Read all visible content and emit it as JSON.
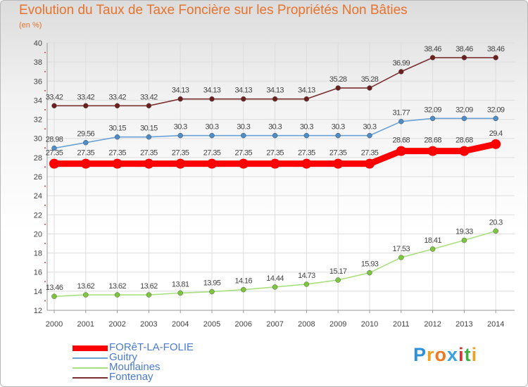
{
  "chart_data": {
    "type": "line",
    "title": "Evolution du Taux de Taxe Foncière sur les Propriétés Non Bâties",
    "subtitle": "(en %)",
    "x": [
      "2000",
      "2001",
      "2002",
      "2003",
      "2004",
      "2005",
      "2006",
      "2007",
      "2008",
      "2009",
      "2010",
      "2011",
      "2012",
      "2013",
      "2014"
    ],
    "ylim": [
      12,
      40
    ],
    "yticks": [
      12,
      14,
      16,
      18,
      20,
      22,
      24,
      26,
      28,
      30,
      32,
      34,
      36,
      38,
      40
    ],
    "grid": true,
    "legend_position": "bottom-left",
    "series": [
      {
        "name": "Fontenay",
        "color": "#7a2f2f",
        "marker_color": "#6b1f1f",
        "emphasis": false,
        "values": [
          33.42,
          33.42,
          33.42,
          33.42,
          34.13,
          34.13,
          34.13,
          34.13,
          34.13,
          35.28,
          35.28,
          36.99,
          38.46,
          38.46,
          38.46
        ],
        "labels": [
          "33.42",
          "33.42",
          "33.42",
          "33.42",
          "34.13",
          "34.13",
          "34.13",
          "34.13",
          "34.13",
          "35.28",
          "35.28",
          "36.99",
          "38.46",
          "38.46",
          "38.46"
        ]
      },
      {
        "name": "Guitry",
        "color": "#6aa2d6",
        "marker_color": "#4d8cc7",
        "emphasis": false,
        "values": [
          28.98,
          29.56,
          30.15,
          30.15,
          30.3,
          30.3,
          30.3,
          30.3,
          30.3,
          30.3,
          30.3,
          31.77,
          32.09,
          32.09,
          32.09
        ],
        "labels": [
          "28.98",
          "29.56",
          "30.15",
          "30.15",
          "30.3",
          "30.3",
          "30.3",
          "30.3",
          "30.3",
          "30.3",
          "30.3",
          "31.77",
          "32.09",
          "32.09",
          "32.09"
        ]
      },
      {
        "name": "Mouflaines",
        "color": "#a9e07f",
        "marker_color": "#7cc63c",
        "emphasis": false,
        "values": [
          13.46,
          13.62,
          13.62,
          13.62,
          13.81,
          13.95,
          14.16,
          14.44,
          14.73,
          15.17,
          15.93,
          17.53,
          18.41,
          19.33,
          20.3
        ],
        "labels": [
          "13.46",
          "13.62",
          "13.62",
          "13.62",
          "13.81",
          "13.95",
          "14.16",
          "14.44",
          "14.73",
          "15.17",
          "15.93",
          "17.53",
          "18.41",
          "19.33",
          "20.3"
        ]
      },
      {
        "name": "FORêT-LA-FOLIE",
        "color": "#ff0000",
        "marker_color": "#ff0000",
        "emphasis": true,
        "values": [
          27.35,
          27.35,
          27.35,
          27.35,
          27.35,
          27.35,
          27.35,
          27.35,
          27.35,
          27.35,
          27.35,
          28.68,
          28.68,
          28.68,
          29.4
        ],
        "labels": [
          "27.35",
          "27.35",
          "27.35",
          "27.35",
          "27.35",
          "27.35",
          "27.35",
          "27.35",
          "27.35",
          "27.35",
          "27.35",
          "28.68",
          "28.68",
          "28.68",
          "29.4"
        ]
      }
    ]
  },
  "legend": {
    "items": [
      {
        "label": "FORêT-LA-FOLIE",
        "color": "#ff0000",
        "label_color": "#4a7bd0",
        "thick": true
      },
      {
        "label": "Guitry",
        "color": "#6aa2d6",
        "label_color": "#4a7bd0",
        "thick": false
      },
      {
        "label": "Mouflaines",
        "color": "#a9e07f",
        "label_color": "#4a7bd0",
        "thick": false
      },
      {
        "label": "Fontenay",
        "color": "#7a2f2f",
        "label_color": "#4a7bd0",
        "thick": false
      }
    ]
  },
  "logo": {
    "letters": [
      "P",
      "r",
      "o",
      "x",
      "i",
      "t",
      "i"
    ],
    "colors": [
      "#2f8fd8",
      "#f0a020",
      "#f07820",
      "#3aa0e0",
      "#e03030",
      "#40b040",
      "#f0a020"
    ]
  }
}
